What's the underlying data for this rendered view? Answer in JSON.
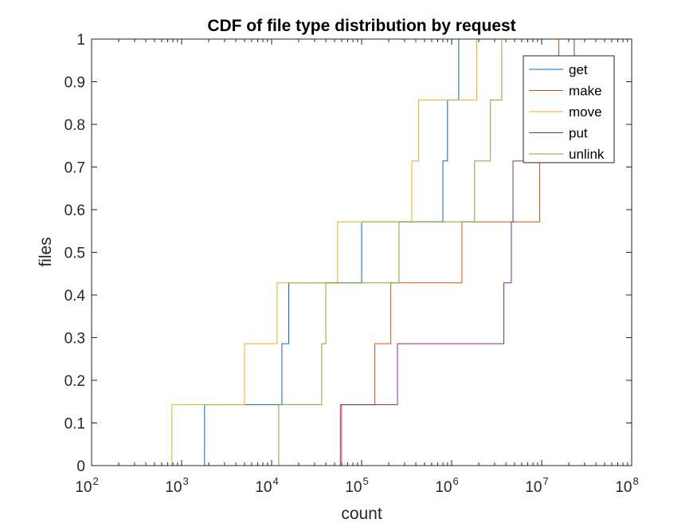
{
  "chart_data": {
    "type": "line",
    "step": true,
    "title": "CDF of file type distribution by request",
    "xlabel": "count",
    "ylabel": "files",
    "xscale": "log",
    "xlim": [
      100,
      100000000
    ],
    "ylim": [
      0,
      1
    ],
    "x_ticks": [
      {
        "base": "10",
        "exp": "2",
        "value": 100
      },
      {
        "base": "10",
        "exp": "3",
        "value": 1000
      },
      {
        "base": "10",
        "exp": "4",
        "value": 10000
      },
      {
        "base": "10",
        "exp": "5",
        "value": 100000
      },
      {
        "base": "10",
        "exp": "6",
        "value": 1000000
      },
      {
        "base": "10",
        "exp": "7",
        "value": 10000000
      },
      {
        "base": "10",
        "exp": "8",
        "value": 100000000
      }
    ],
    "y_ticks": [
      "0",
      "0.1",
      "0.2",
      "0.3",
      "0.4",
      "0.5",
      "0.6",
      "0.7",
      "0.8",
      "0.9",
      "1"
    ],
    "grid": false,
    "legend_position": "top-right",
    "series": [
      {
        "name": "get",
        "color": "#0072BD",
        "x": [
          1800,
          13000,
          15500,
          100000,
          800000,
          900000,
          1200000
        ]
      },
      {
        "name": "make",
        "color": "#D95319",
        "x": [
          60000,
          140000,
          210000,
          1300000,
          9500000,
          11000000,
          15500000
        ]
      },
      {
        "name": "move",
        "color": "#EDB120",
        "x": [
          780,
          5000,
          11500,
          54000,
          360000,
          430000,
          1900000
        ]
      },
      {
        "name": "put",
        "color": "#7E2F8E",
        "x": [
          58000,
          250000,
          3800000,
          4600000,
          4800000,
          21000000,
          23000000
        ]
      },
      {
        "name": "unlink",
        "color": "#77AC30",
        "x": [
          12000,
          36000,
          40000,
          260000,
          1800000,
          2700000,
          3600000
        ]
      }
    ]
  }
}
